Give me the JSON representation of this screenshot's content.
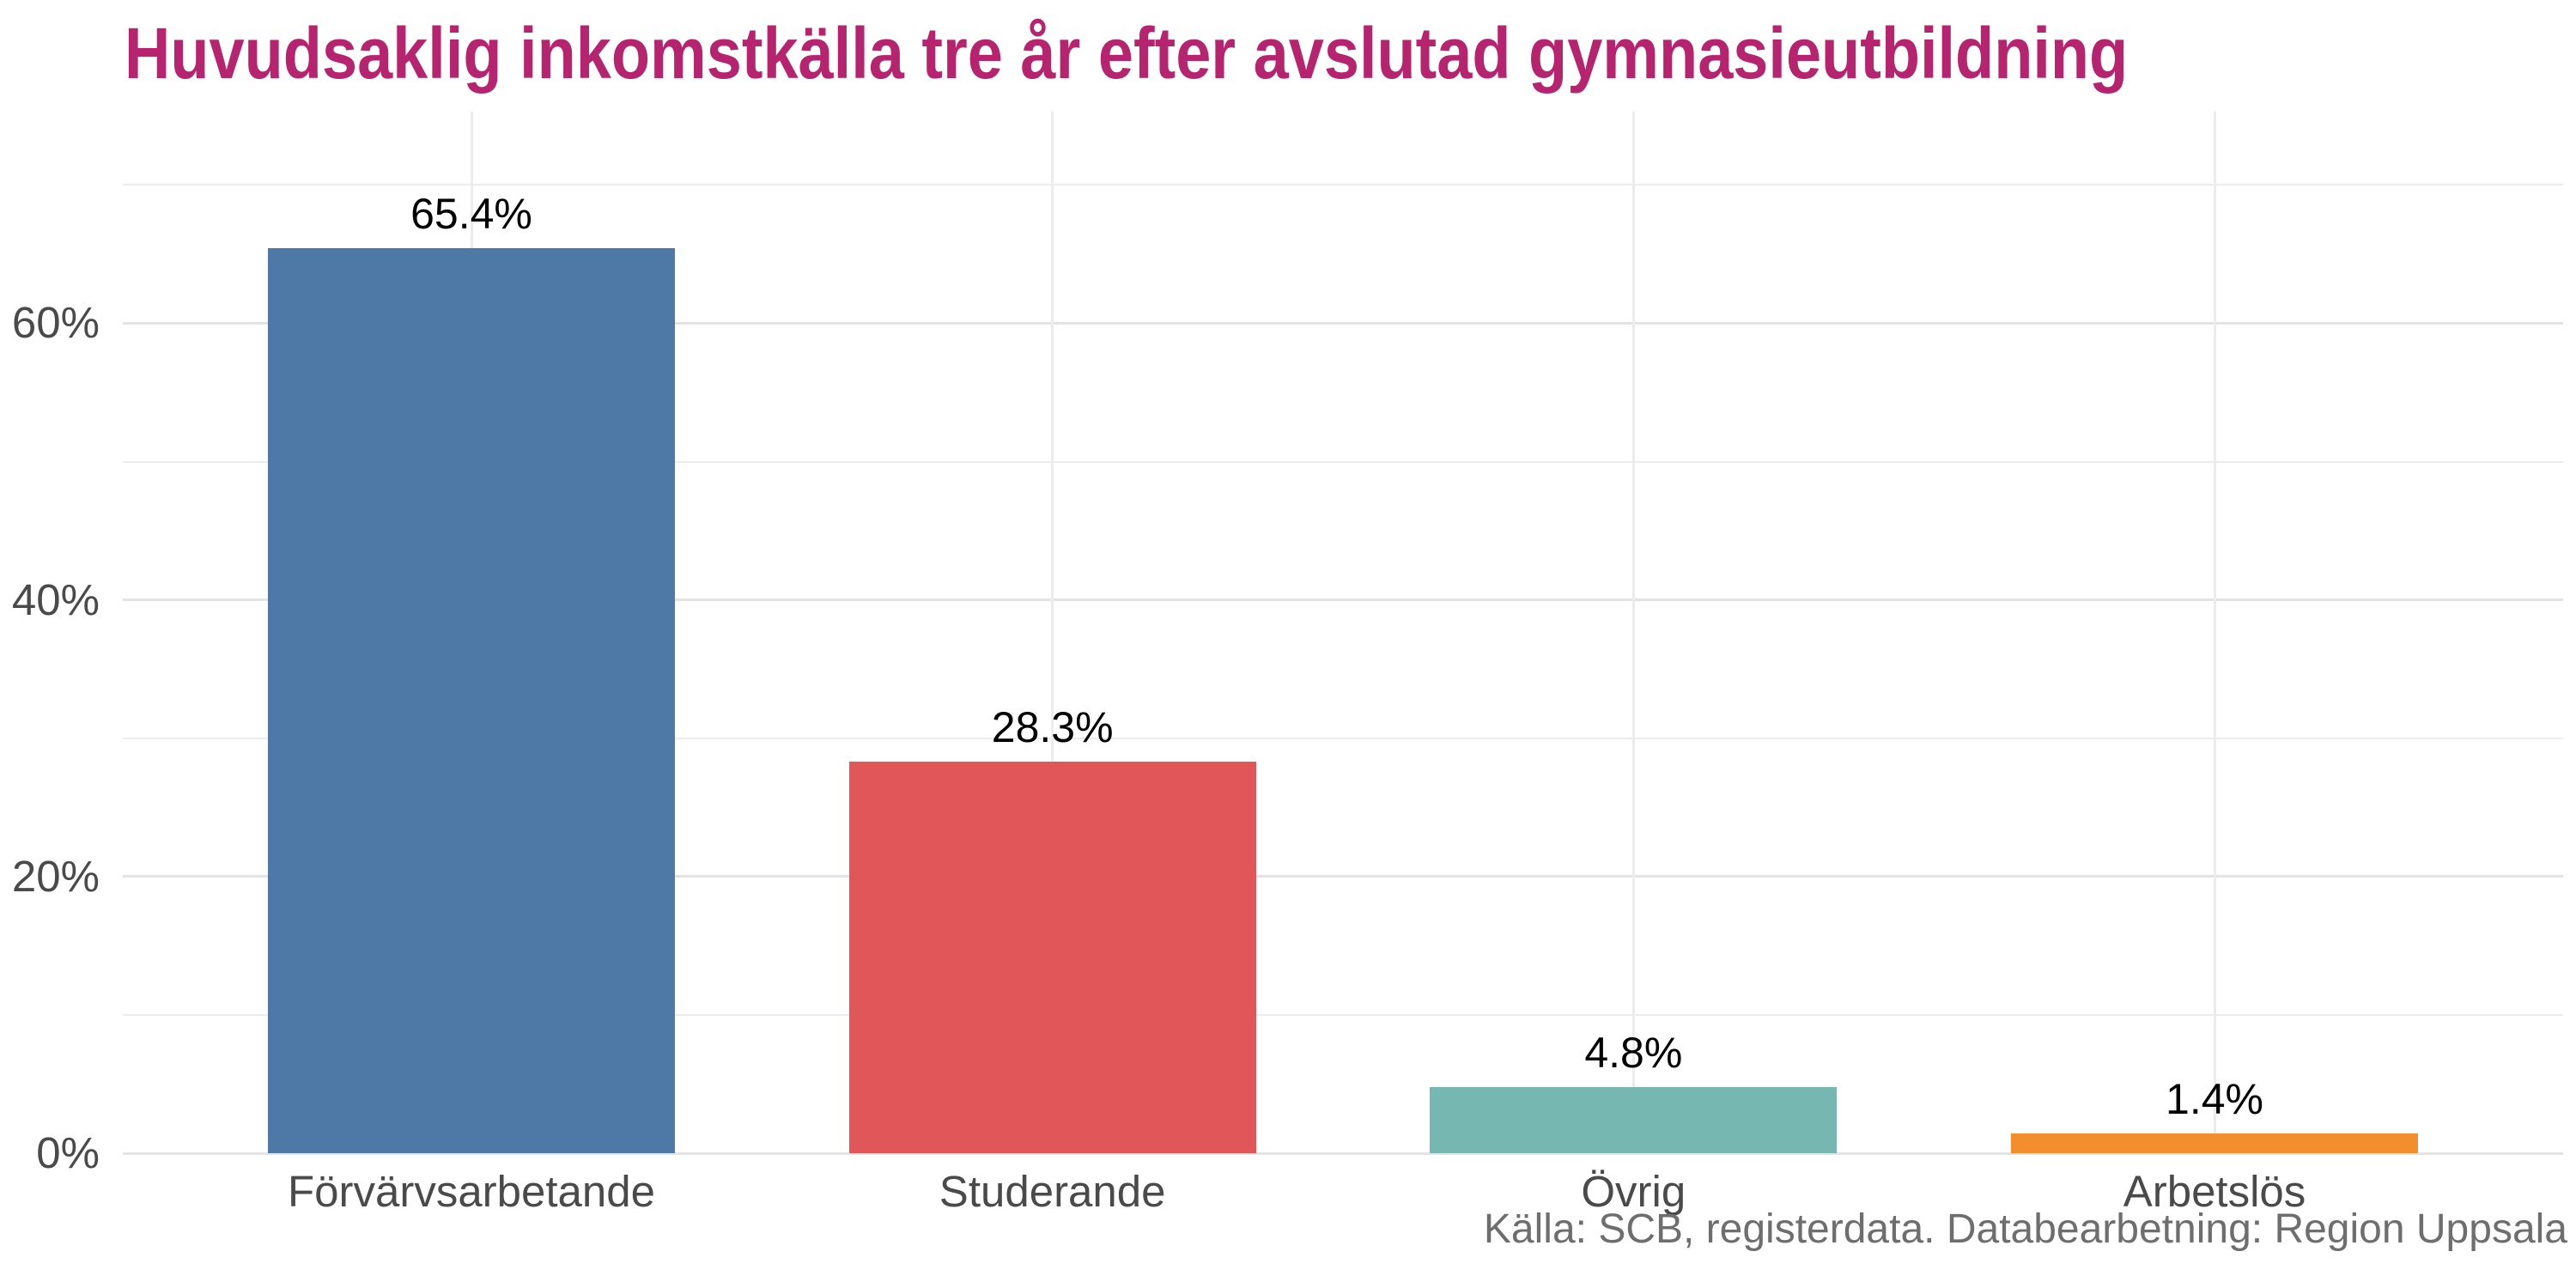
{
  "chart_data": {
    "type": "bar",
    "title": "Huvudsaklig inkomstkälla tre år efter avslutad gymnasieutbildning",
    "categories": [
      "Förvärvsarbetande",
      "Studerande",
      "Övrig",
      "Arbetslös"
    ],
    "values": [
      65.4,
      28.3,
      4.8,
      1.4
    ],
    "value_labels": [
      "65.4%",
      "28.3%",
      "4.8%",
      "1.4%"
    ],
    "bar_colors": [
      "#4e79a7",
      "#e15759",
      "#76b7b2",
      "#f28e2b"
    ],
    "xlabel": "",
    "ylabel": "",
    "y_axis": {
      "tick_values": [
        0,
        20,
        40,
        60
      ],
      "tick_labels": [
        "0%",
        "20%",
        "40%",
        "60%"
      ],
      "gridlines_major": [
        0,
        20,
        40,
        60
      ],
      "gridlines_minor": [
        10,
        30,
        50,
        70
      ],
      "ylim": [
        0,
        75.3
      ]
    },
    "grid": true,
    "legend": "none",
    "source": "Källa: SCB, registerdata. Databearbetning: Region Uppsala",
    "colors": {
      "title": "#b6236e",
      "axis_text": "#4a4a4a",
      "value_label": "#000000",
      "source_text": "#6e6e6e",
      "gridline_major": "#e3e3e3",
      "gridline_minor": "#ececec",
      "background": "#ffffff"
    }
  }
}
